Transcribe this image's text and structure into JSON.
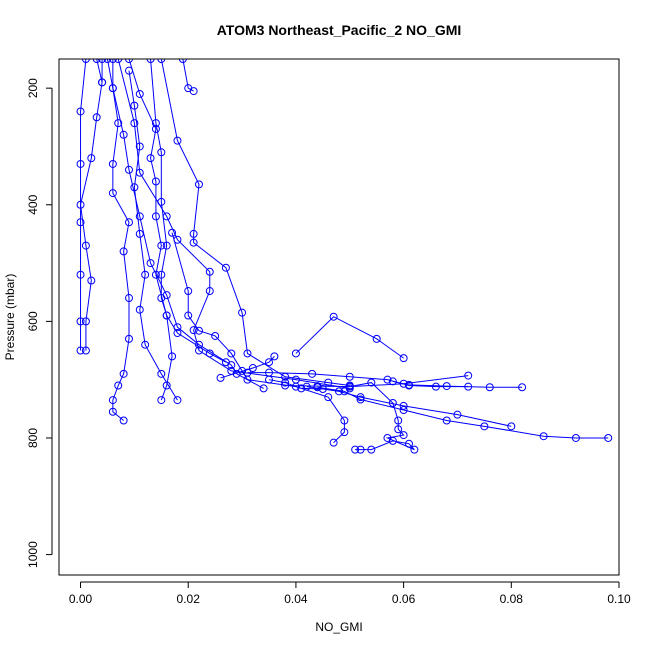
{
  "chart_data": {
    "type": "line",
    "title": "ATOM3 Northeast_Pacific_2 NO_GMI",
    "xlabel": "NO_GMI",
    "ylabel": "Pressure (mbar)",
    "xlim": [
      -0.004,
      0.1
    ],
    "ylim": [
      1035,
      150
    ],
    "y_reversed": true,
    "grid": false,
    "color": "#0000ff",
    "x_ticks": [
      0,
      0.02,
      0.04,
      0.06,
      0.08,
      0.1
    ],
    "x_tick_labels": [
      "0.00",
      "0.02",
      "0.04",
      "0.06",
      "0.08",
      "0.10"
    ],
    "y_ticks": [
      200,
      400,
      600,
      800,
      1000
    ],
    "y_tick_labels": [
      "200",
      "400",
      "600",
      "800",
      "1000"
    ],
    "series": [
      {
        "points": [
          [
            0.0,
            650
          ],
          [
            0.0,
            600
          ],
          [
            0.0,
            520
          ],
          [
            0.0,
            430
          ],
          [
            0.0,
            330
          ],
          [
            0.0,
            240
          ],
          [
            0.001,
            150
          ]
        ]
      },
      {
        "points": [
          [
            0.001,
            650
          ],
          [
            0.001,
            600
          ],
          [
            0.002,
            530
          ],
          [
            0.001,
            470
          ],
          [
            0.0,
            400
          ],
          [
            0.002,
            320
          ],
          [
            0.003,
            250
          ],
          [
            0.004,
            190
          ],
          [
            0.003,
            150
          ]
        ]
      },
      {
        "points": [
          [
            0.008,
            770
          ],
          [
            0.006,
            755
          ],
          [
            0.006,
            735
          ],
          [
            0.007,
            710
          ],
          [
            0.008,
            690
          ],
          [
            0.009,
            630
          ],
          [
            0.009,
            560
          ],
          [
            0.008,
            480
          ],
          [
            0.009,
            430
          ],
          [
            0.006,
            380
          ],
          [
            0.006,
            330
          ],
          [
            0.007,
            260
          ],
          [
            0.006,
            200
          ],
          [
            0.006,
            150
          ]
        ]
      },
      {
        "points": [
          [
            0.015,
            735
          ],
          [
            0.016,
            710
          ],
          [
            0.017,
            660
          ],
          [
            0.016,
            590
          ],
          [
            0.014,
            520
          ],
          [
            0.015,
            470
          ],
          [
            0.014,
            420
          ],
          [
            0.014,
            360
          ],
          [
            0.013,
            320
          ],
          [
            0.014,
            270
          ],
          [
            0.011,
            210
          ],
          [
            0.009,
            150
          ]
        ]
      },
      {
        "points": [
          [
            0.018,
            735
          ],
          [
            0.015,
            690
          ],
          [
            0.012,
            640
          ],
          [
            0.011,
            580
          ],
          [
            0.012,
            520
          ],
          [
            0.011,
            450
          ],
          [
            0.01,
            370
          ],
          [
            0.011,
            300
          ],
          [
            0.01,
            230
          ],
          [
            0.009,
            170
          ]
        ]
      },
      {
        "points": [
          [
            0.034,
            715
          ],
          [
            0.029,
            690
          ],
          [
            0.028,
            675
          ],
          [
            0.022,
            640
          ],
          [
            0.018,
            610
          ],
          [
            0.016,
            555
          ],
          [
            0.013,
            500
          ],
          [
            0.011,
            420
          ],
          [
            0.009,
            340
          ],
          [
            0.008,
            280
          ],
          [
            0.006,
            200
          ],
          [
            0.005,
            150
          ]
        ]
      },
      {
        "points": [
          [
            0.027,
            670
          ],
          [
            0.024,
            655
          ],
          [
            0.018,
            620
          ],
          [
            0.016,
            590
          ],
          [
            0.015,
            560
          ],
          [
            0.015,
            520
          ],
          [
            0.016,
            470
          ],
          [
            0.015,
            395
          ],
          [
            0.015,
            310
          ],
          [
            0.014,
            260
          ],
          [
            0.013,
            150
          ]
        ]
      },
      {
        "points": [
          [
            0.05,
            710
          ],
          [
            0.046,
            705
          ],
          [
            0.038,
            695
          ],
          [
            0.031,
            655
          ],
          [
            0.03,
            585
          ],
          [
            0.027,
            508
          ],
          [
            0.021,
            465
          ],
          [
            0.021,
            450
          ],
          [
            0.022,
            365
          ],
          [
            0.018,
            290
          ],
          [
            0.015,
            150
          ]
        ]
      },
      {
        "points": [
          [
            0.05,
            715
          ],
          [
            0.04,
            700
          ],
          [
            0.028,
            685
          ],
          [
            0.022,
            650
          ],
          [
            0.021,
            615
          ],
          [
            0.024,
            548
          ],
          [
            0.024,
            515
          ],
          [
            0.018,
            460
          ],
          [
            0.016,
            420
          ],
          [
            0.011,
            345
          ],
          [
            0.01,
            260
          ],
          [
            0.007,
            150
          ]
        ]
      },
      {
        "points": [
          [
            0.051,
            820
          ],
          [
            0.052,
            820
          ],
          [
            0.054,
            820
          ],
          [
            0.058,
            805
          ],
          [
            0.061,
            810
          ],
          [
            0.062,
            820
          ],
          [
            0.057,
            800
          ],
          [
            0.06,
            795
          ],
          [
            0.059,
            785
          ],
          [
            0.059,
            770
          ],
          [
            0.058,
            740
          ],
          [
            0.054,
            705
          ],
          [
            0.05,
            712
          ]
        ]
      },
      {
        "points": [
          [
            0.047,
            808
          ],
          [
            0.049,
            790
          ],
          [
            0.049,
            770
          ],
          [
            0.046,
            730
          ],
          [
            0.04,
            712
          ],
          [
            0.031,
            700
          ],
          [
            0.03,
            685
          ],
          [
            0.028,
            655
          ],
          [
            0.025,
            625
          ],
          [
            0.022,
            616
          ],
          [
            0.02,
            590
          ],
          [
            0.02,
            548
          ],
          [
            0.017,
            448
          ]
        ]
      },
      {
        "points": [
          [
            0.072,
            712
          ],
          [
            0.066,
            712
          ],
          [
            0.061,
            710
          ],
          [
            0.057,
            700
          ],
          [
            0.05,
            695
          ],
          [
            0.043,
            690
          ],
          [
            0.035,
            688
          ],
          [
            0.031,
            688
          ]
        ]
      },
      {
        "points": [
          [
            0.098,
            800
          ],
          [
            0.092,
            800
          ],
          [
            0.086,
            797
          ],
          [
            0.075,
            780
          ],
          [
            0.068,
            770
          ],
          [
            0.06,
            752
          ],
          [
            0.052,
            734
          ],
          [
            0.049,
            720
          ],
          [
            0.044,
            713
          ]
        ]
      },
      {
        "points": [
          [
            0.08,
            780
          ],
          [
            0.07,
            760
          ],
          [
            0.06,
            745
          ],
          [
            0.052,
            730
          ],
          [
            0.048,
            720
          ],
          [
            0.042,
            712
          ]
        ]
      },
      {
        "points": [
          [
            0.072,
            693
          ],
          [
            0.06,
            707
          ],
          [
            0.05,
            712
          ],
          [
            0.044,
            711
          ],
          [
            0.038,
            710
          ]
        ]
      },
      {
        "points": [
          [
            0.082,
            713
          ],
          [
            0.076,
            713
          ],
          [
            0.068,
            711
          ],
          [
            0.061,
            709
          ],
          [
            0.058,
            703
          ]
        ]
      },
      {
        "points": [
          [
            0.06,
            663
          ],
          [
            0.055,
            630
          ],
          [
            0.047,
            592
          ],
          [
            0.04,
            655
          ]
        ]
      },
      {
        "points": [
          [
            0.026,
            697
          ],
          [
            0.032,
            680
          ],
          [
            0.035,
            670
          ],
          [
            0.036,
            660
          ]
        ]
      },
      {
        "points": [
          [
            0.035,
            700
          ],
          [
            0.038,
            705
          ],
          [
            0.041,
            715
          ],
          [
            0.045,
            716
          ]
        ]
      },
      {
        "points": [
          [
            0.021,
            205
          ],
          [
            0.02,
            200
          ],
          [
            0.019,
            150
          ]
        ]
      },
      {
        "points": [
          [
            0.004,
            190
          ],
          [
            0.004,
            150
          ]
        ]
      }
    ]
  }
}
